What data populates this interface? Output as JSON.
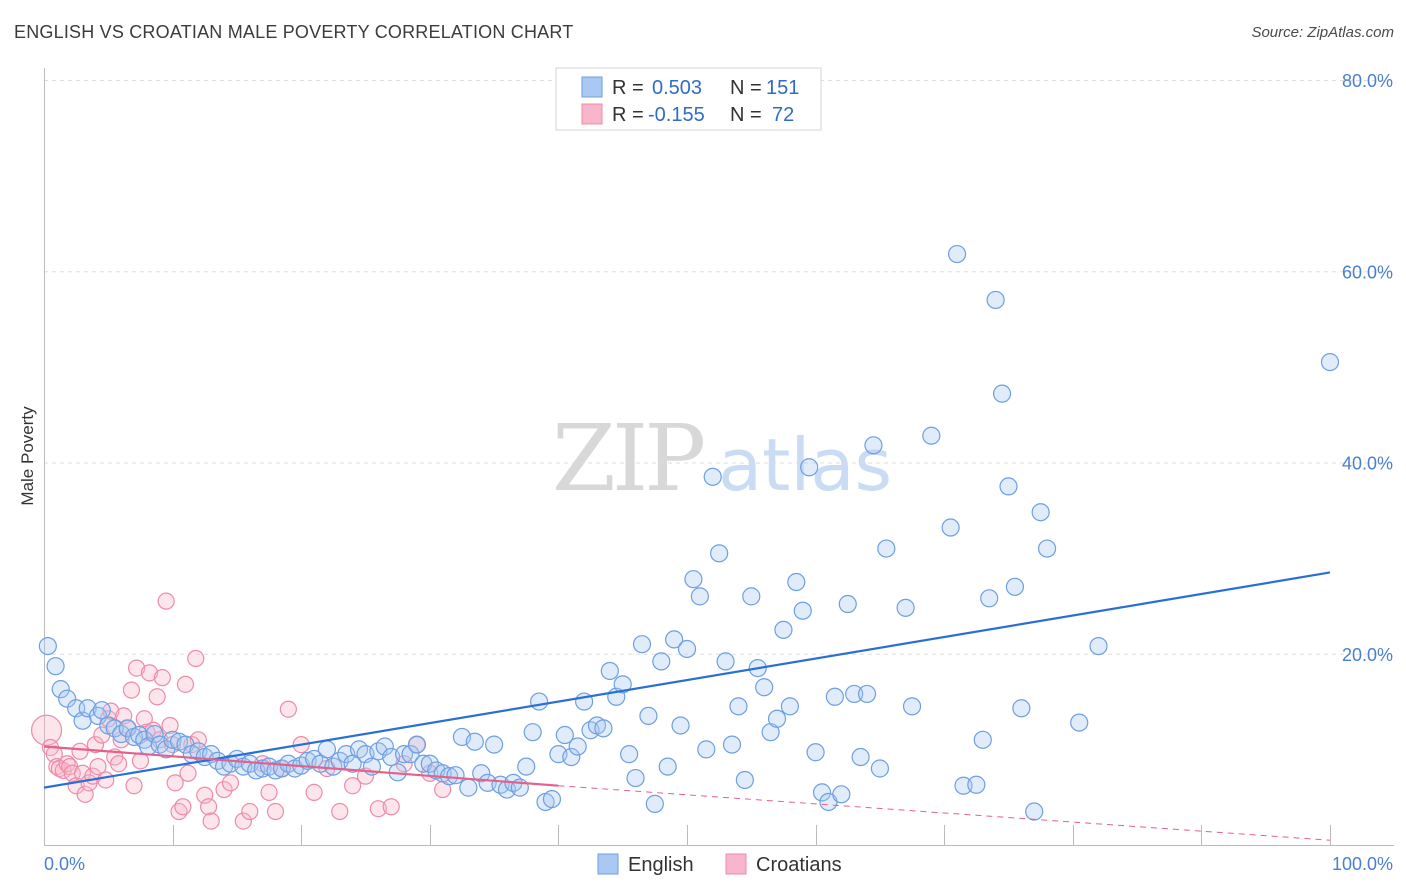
{
  "header": {
    "title": "ENGLISH VS CROATIAN MALE POVERTY CORRELATION CHART",
    "source": "Source: ZipAtlas.com"
  },
  "watermark": {
    "zip": "ZIP",
    "atlas": "atlas"
  },
  "legend": {
    "rows": [
      {
        "r_label": "R = ",
        "r_value": "0.503",
        "n_label": "N = ",
        "n_value": "151",
        "color": "#a9c8f2"
      },
      {
        "r_label": "R = ",
        "r_value": "-0.155",
        "n_label": "N = ",
        "n_value": "72",
        "color": "#f7b6c9"
      }
    ]
  },
  "colors": {
    "english": "#6d9fe2",
    "croatians": "#ee8aaa",
    "english_line": "#2a6fd6",
    "croatians_line": "#e5608a",
    "accent_text": "#2e6cc7"
  },
  "chart_data": {
    "type": "scatter",
    "title": "ENGLISH VS CROATIAN MALE POVERTY CORRELATION CHART",
    "xlabel": "",
    "ylabel": "Male Poverty",
    "xlim": [
      0,
      100
    ],
    "ylim": [
      0,
      80
    ],
    "x_tick_labels": [
      "0.0%",
      "100.0%"
    ],
    "y_ticks": [
      20,
      40,
      60,
      80
    ],
    "y_tick_labels": [
      "20.0%",
      "40.0%",
      "60.0%",
      "80.0%"
    ],
    "grid": true,
    "legend_position": "top-center",
    "series": [
      {
        "name": "English",
        "color": "#6d9fe2",
        "trend": {
          "x": [
            0,
            100
          ],
          "y": [
            6.0,
            28.5
          ]
        },
        "points": [
          [
            0.3,
            20.8
          ],
          [
            0.9,
            18.7
          ],
          [
            1.3,
            16.3
          ],
          [
            1.8,
            15.3
          ],
          [
            2.5,
            14.3
          ],
          [
            3.0,
            13.0
          ],
          [
            3.4,
            14.3
          ],
          [
            4.2,
            13.5
          ],
          [
            4.5,
            14.1
          ],
          [
            5.0,
            12.5
          ],
          [
            5.5,
            12.2
          ],
          [
            6.0,
            11.6
          ],
          [
            6.5,
            12.2
          ],
          [
            7.0,
            11.3
          ],
          [
            7.4,
            11.5
          ],
          [
            7.8,
            11.0
          ],
          [
            8.1,
            10.3
          ],
          [
            8.6,
            11.6
          ],
          [
            9.0,
            10.5
          ],
          [
            9.5,
            10.0
          ],
          [
            10.0,
            11.0
          ],
          [
            10.5,
            10.8
          ],
          [
            11.0,
            10.5
          ],
          [
            11.5,
            9.5
          ],
          [
            12.0,
            9.8
          ],
          [
            12.5,
            9.2
          ],
          [
            13.0,
            9.5
          ],
          [
            13.5,
            8.8
          ],
          [
            14.0,
            8.2
          ],
          [
            14.5,
            8.5
          ],
          [
            15.0,
            9.0
          ],
          [
            15.5,
            8.2
          ],
          [
            16.0,
            8.5
          ],
          [
            16.5,
            7.8
          ],
          [
            17.0,
            8.0
          ],
          [
            17.5,
            8.2
          ],
          [
            18.0,
            7.8
          ],
          [
            18.5,
            8.0
          ],
          [
            19.0,
            8.5
          ],
          [
            19.5,
            8.0
          ],
          [
            20.0,
            8.3
          ],
          [
            20.5,
            8.8
          ],
          [
            21.0,
            9.0
          ],
          [
            21.5,
            8.5
          ],
          [
            22.0,
            10.0
          ],
          [
            22.5,
            8.2
          ],
          [
            23.0,
            8.8
          ],
          [
            23.5,
            9.5
          ],
          [
            24.0,
            8.5
          ],
          [
            24.5,
            10.0
          ],
          [
            25.0,
            9.5
          ],
          [
            25.5,
            8.2
          ],
          [
            26.0,
            9.8
          ],
          [
            26.5,
            10.3
          ],
          [
            27.0,
            9.2
          ],
          [
            27.5,
            7.6
          ],
          [
            28.0,
            9.5
          ],
          [
            28.5,
            9.5
          ],
          [
            29.0,
            10.5
          ],
          [
            29.5,
            8.5
          ],
          [
            30.0,
            8.5
          ],
          [
            30.5,
            7.8
          ],
          [
            31.0,
            7.5
          ],
          [
            31.5,
            7.2
          ],
          [
            32.0,
            7.3
          ],
          [
            32.5,
            11.3
          ],
          [
            33.0,
            6.0
          ],
          [
            33.5,
            10.8
          ],
          [
            34.0,
            7.5
          ],
          [
            34.5,
            6.5
          ],
          [
            35.0,
            10.5
          ],
          [
            35.5,
            6.3
          ],
          [
            36.0,
            5.8
          ],
          [
            36.5,
            6.5
          ],
          [
            37.0,
            6.0
          ],
          [
            37.5,
            8.2
          ],
          [
            38.0,
            11.8
          ],
          [
            38.5,
            15.0
          ],
          [
            39.0,
            4.5
          ],
          [
            39.5,
            4.8
          ],
          [
            40.0,
            9.5
          ],
          [
            40.5,
            11.5
          ],
          [
            41.0,
            9.2
          ],
          [
            41.5,
            10.3
          ],
          [
            42.0,
            15.0
          ],
          [
            42.5,
            12.0
          ],
          [
            43.0,
            12.5
          ],
          [
            43.5,
            12.2
          ],
          [
            44.0,
            18.2
          ],
          [
            44.5,
            15.5
          ],
          [
            45.0,
            16.8
          ],
          [
            45.5,
            9.5
          ],
          [
            46.0,
            7.0
          ],
          [
            46.5,
            21.0
          ],
          [
            47.0,
            13.5
          ],
          [
            47.5,
            4.3
          ],
          [
            48.0,
            19.2
          ],
          [
            48.5,
            8.2
          ],
          [
            49.0,
            21.5
          ],
          [
            49.5,
            12.5
          ],
          [
            50.0,
            20.5
          ],
          [
            50.5,
            27.8
          ],
          [
            51.0,
            26.0
          ],
          [
            51.5,
            10.0
          ],
          [
            52.0,
            38.5
          ],
          [
            52.5,
            30.5
          ],
          [
            53.0,
            19.2
          ],
          [
            53.5,
            10.5
          ],
          [
            54.0,
            14.5
          ],
          [
            54.5,
            6.8
          ],
          [
            55.0,
            26.0
          ],
          [
            55.5,
            18.5
          ],
          [
            56.0,
            16.5
          ],
          [
            56.5,
            11.8
          ],
          [
            57.0,
            13.2
          ],
          [
            57.5,
            22.5
          ],
          [
            58.0,
            14.5
          ],
          [
            58.5,
            27.5
          ],
          [
            59.0,
            24.5
          ],
          [
            59.5,
            39.5
          ],
          [
            60.0,
            9.7
          ],
          [
            60.5,
            5.5
          ],
          [
            61.0,
            4.5
          ],
          [
            61.5,
            15.5
          ],
          [
            62.0,
            5.3
          ],
          [
            62.5,
            25.2
          ],
          [
            63.0,
            15.8
          ],
          [
            63.5,
            9.2
          ],
          [
            64.0,
            15.8
          ],
          [
            64.5,
            41.8
          ],
          [
            65.0,
            8.0
          ],
          [
            65.5,
            31.0
          ],
          [
            67.0,
            24.8
          ],
          [
            67.5,
            14.5
          ],
          [
            69.0,
            42.8
          ],
          [
            70.5,
            33.2
          ],
          [
            71.0,
            61.8
          ],
          [
            71.5,
            6.2
          ],
          [
            72.5,
            6.3
          ],
          [
            73.0,
            11.0
          ],
          [
            73.5,
            25.8
          ],
          [
            74.0,
            57.0
          ],
          [
            74.5,
            47.2
          ],
          [
            75.0,
            37.5
          ],
          [
            75.5,
            27.0
          ],
          [
            76.0,
            14.3
          ],
          [
            77.0,
            3.5
          ],
          [
            77.5,
            34.8
          ],
          [
            78.0,
            31.0
          ],
          [
            80.5,
            12.8
          ],
          [
            82.0,
            20.8
          ],
          [
            100.0,
            50.5
          ]
        ]
      },
      {
        "name": "Croatians",
        "color": "#ee8aaa",
        "trend": {
          "x": [
            0,
            40
          ],
          "y": [
            10.3,
            6.2
          ]
        },
        "trend_extension": {
          "x": [
            40,
            100
          ],
          "y": [
            6.2,
            0.5
          ]
        },
        "points": [
          [
            0.2,
            12.0
          ],
          [
            0.5,
            10.2
          ],
          [
            0.8,
            9.5
          ],
          [
            1.0,
            8.2
          ],
          [
            1.2,
            8.0
          ],
          [
            1.5,
            7.8
          ],
          [
            1.8,
            8.5
          ],
          [
            2.0,
            8.2
          ],
          [
            2.2,
            7.5
          ],
          [
            2.5,
            6.2
          ],
          [
            2.8,
            9.8
          ],
          [
            3.0,
            7.5
          ],
          [
            3.2,
            5.3
          ],
          [
            3.5,
            6.5
          ],
          [
            3.8,
            7.2
          ],
          [
            4.0,
            10.5
          ],
          [
            4.2,
            8.2
          ],
          [
            4.5,
            11.5
          ],
          [
            4.8,
            6.8
          ],
          [
            5.0,
            13.2
          ],
          [
            5.2,
            14.0
          ],
          [
            5.5,
            9.2
          ],
          [
            5.8,
            8.5
          ],
          [
            6.0,
            11.0
          ],
          [
            6.2,
            13.5
          ],
          [
            6.5,
            12.2
          ],
          [
            6.8,
            16.2
          ],
          [
            7.0,
            6.2
          ],
          [
            7.2,
            18.5
          ],
          [
            7.5,
            8.8
          ],
          [
            7.8,
            13.2
          ],
          [
            8.0,
            11.8
          ],
          [
            8.2,
            18.0
          ],
          [
            8.5,
            12.0
          ],
          [
            8.8,
            15.5
          ],
          [
            9.0,
            11.0
          ],
          [
            9.2,
            17.5
          ],
          [
            9.5,
            25.5
          ],
          [
            9.8,
            12.5
          ],
          [
            10.0,
            10.5
          ],
          [
            10.2,
            6.5
          ],
          [
            10.5,
            3.5
          ],
          [
            10.8,
            4.0
          ],
          [
            11.0,
            16.8
          ],
          [
            11.2,
            7.5
          ],
          [
            11.5,
            10.5
          ],
          [
            11.8,
            19.5
          ],
          [
            12.0,
            11.0
          ],
          [
            12.5,
            5.2
          ],
          [
            12.8,
            4.0
          ],
          [
            13.0,
            2.5
          ],
          [
            14.0,
            5.8
          ],
          [
            14.5,
            6.5
          ],
          [
            15.5,
            2.5
          ],
          [
            16.0,
            3.5
          ],
          [
            17.0,
            8.5
          ],
          [
            17.5,
            5.5
          ],
          [
            18.0,
            3.5
          ],
          [
            18.5,
            8.0
          ],
          [
            19.0,
            14.2
          ],
          [
            20.0,
            10.5
          ],
          [
            21.0,
            5.5
          ],
          [
            22.0,
            8.0
          ],
          [
            23.0,
            3.5
          ],
          [
            24.0,
            6.2
          ],
          [
            25.0,
            7.2
          ],
          [
            26.0,
            3.8
          ],
          [
            27.0,
            4.0
          ],
          [
            28.0,
            8.5
          ],
          [
            29.0,
            10.5
          ],
          [
            30.0,
            7.5
          ],
          [
            31.0,
            5.8
          ]
        ]
      }
    ]
  },
  "bottom_legend": {
    "english": "English",
    "croatians": "Croatians"
  }
}
